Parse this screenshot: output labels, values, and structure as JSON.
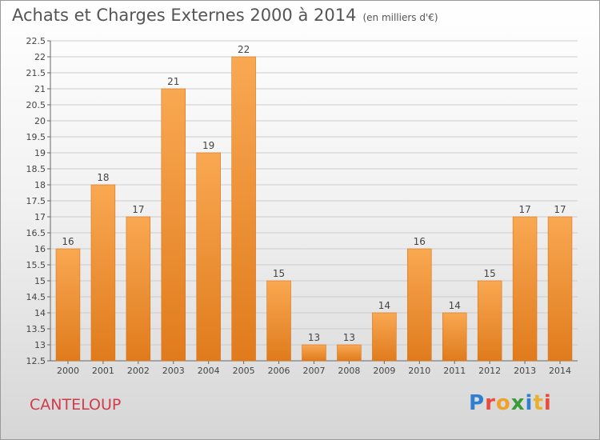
{
  "header": {
    "title": "Achats et Charges Externes 2000 à 2014",
    "unit": "(en milliers d'€)"
  },
  "footer": {
    "place": "CANTELOUP",
    "logo": "Proxiti"
  },
  "colors": {
    "bar_light": "#f9a852",
    "bar_dark": "#e07b1c",
    "grid": "#cccccc",
    "place": "#d23c4a"
  },
  "chart_data": {
    "type": "bar",
    "title": "Achats et Charges Externes 2000 à 2014",
    "subtitle": "(en milliers d'€)",
    "xlabel": "",
    "ylabel": "",
    "categories": [
      "2000",
      "2001",
      "2002",
      "2003",
      "2004",
      "2005",
      "2006",
      "2007",
      "2008",
      "2009",
      "2010",
      "2011",
      "2012",
      "2013",
      "2014"
    ],
    "values": [
      16,
      18,
      17,
      21,
      19,
      22,
      15,
      13,
      13,
      14,
      16,
      14,
      15,
      17,
      17
    ],
    "ylim": [
      12.5,
      22.5
    ],
    "yticks": [
      "12.5",
      "13",
      "13.5",
      "14",
      "14.5",
      "15",
      "15.5",
      "16",
      "16.5",
      "17",
      "17.5",
      "18",
      "18.5",
      "19",
      "19.5",
      "20",
      "20.5",
      "21",
      "21.5",
      "22",
      "22.5"
    ],
    "grid": true,
    "legend": "none"
  }
}
